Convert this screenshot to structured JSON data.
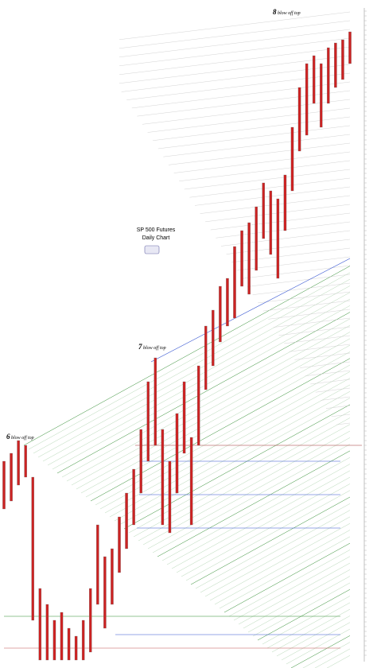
{
  "chart_data": {
    "type": "range-bar",
    "title": "SP 500 Futures",
    "subtitle": "Daily Chart",
    "annotations": [
      {
        "number": "6",
        "text": "blow off top"
      },
      {
        "number": "7",
        "text": "blow off top"
      },
      {
        "number": "8",
        "text": "blow off top"
      }
    ],
    "highs": [
      1625,
      1650,
      1690,
      1675,
      1575,
      1225,
      1175,
      1125,
      1150,
      1100,
      1075,
      1125,
      1225,
      1425,
      1325,
      1350,
      1450,
      1525,
      1600,
      1725,
      1875,
      1950,
      1725,
      1625,
      1775,
      1875,
      1700,
      1925,
      2050,
      2100,
      2175,
      2200,
      2300,
      2350,
      2375,
      2425,
      2500,
      2475,
      2450,
      2525,
      2675,
      2800,
      2875,
      2900,
      2875,
      2925,
      2940,
      2950,
      2975
    ],
    "lows": [
      1475,
      1500,
      1550,
      1575,
      1125,
      1000,
      1000,
      1000,
      1000,
      1000,
      1000,
      1000,
      1025,
      1175,
      1100,
      1175,
      1275,
      1350,
      1425,
      1525,
      1625,
      1675,
      1425,
      1400,
      1525,
      1650,
      1425,
      1675,
      1850,
      1925,
      2000,
      2050,
      2075,
      2175,
      2150,
      2225,
      2325,
      2275,
      2200,
      2350,
      2475,
      2600,
      2650,
      2750,
      2675,
      2750,
      2800,
      2825,
      2875
    ],
    "color": "#cc2222",
    "ylim": [
      1000,
      3050
    ]
  }
}
